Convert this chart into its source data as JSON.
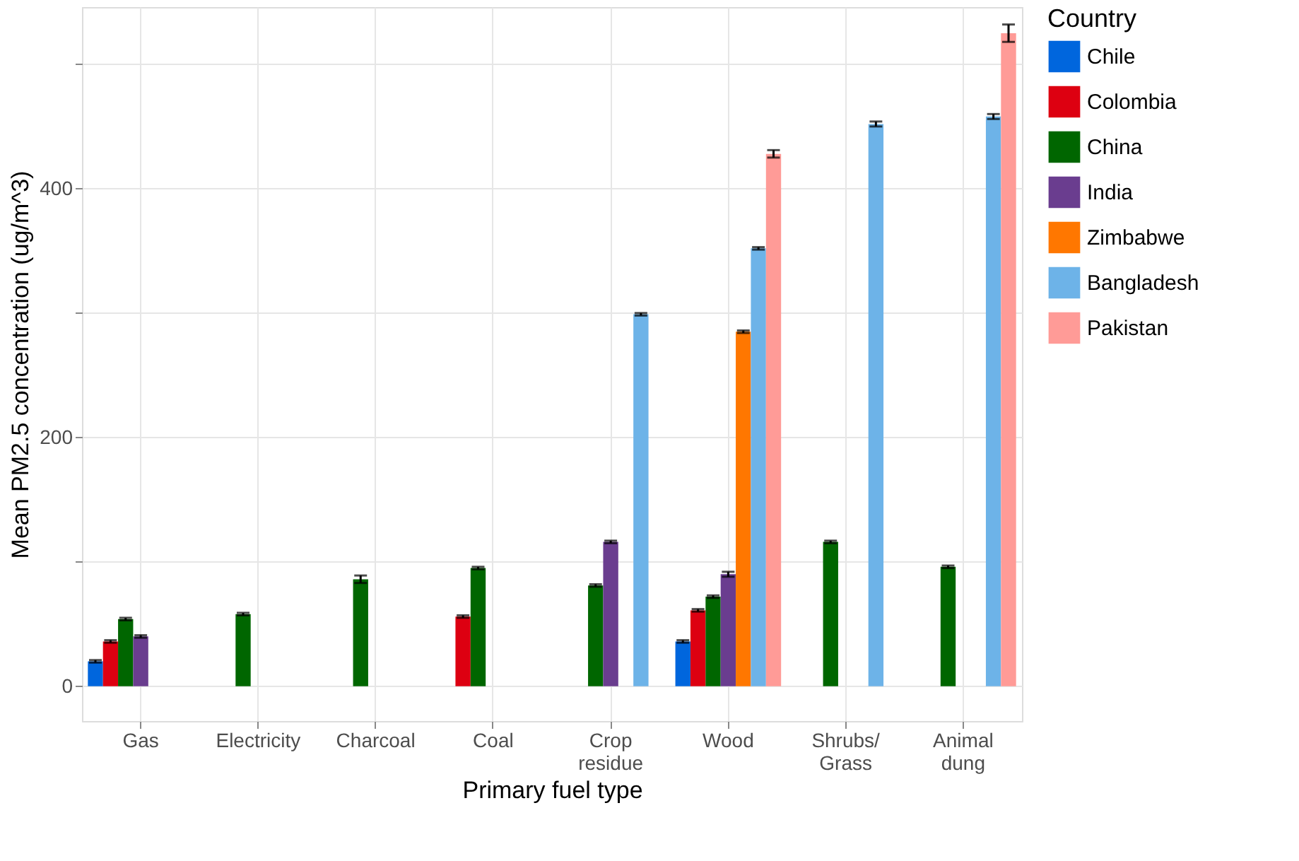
{
  "chart_data": {
    "type": "bar",
    "xlabel": "Primary fuel type",
    "ylabel": "Mean PM2.5 concentration (ug/m^3)",
    "legend_title": "Country",
    "categories": [
      "Gas",
      "Electricity",
      "Charcoal",
      "Coal",
      "Crop\nresidue",
      "Wood",
      "Shrubs/\nGrass",
      "Animal\ndung"
    ],
    "series": [
      {
        "name": "Chile",
        "color": "#0066dd",
        "values": [
          20,
          null,
          null,
          null,
          null,
          36,
          null,
          null
        ],
        "errors": [
          1,
          null,
          null,
          null,
          null,
          1,
          null,
          null
        ]
      },
      {
        "name": "Colombia",
        "color": "#dd0011",
        "values": [
          36,
          null,
          null,
          56,
          null,
          61,
          null,
          null
        ],
        "errors": [
          1,
          null,
          null,
          1,
          null,
          1,
          null,
          null
        ]
      },
      {
        "name": "China",
        "color": "#006600",
        "values": [
          54,
          58,
          86,
          95,
          81,
          72,
          116,
          96
        ],
        "errors": [
          1,
          1,
          3,
          1,
          1,
          1,
          1,
          1
        ]
      },
      {
        "name": "India",
        "color": "#6a3d8f",
        "values": [
          40,
          null,
          null,
          null,
          116,
          90,
          null,
          null
        ],
        "errors": [
          1,
          null,
          null,
          null,
          1,
          2,
          null,
          null
        ]
      },
      {
        "name": "Zimbabwe",
        "color": "#ff7700",
        "values": [
          null,
          null,
          null,
          null,
          null,
          285,
          null,
          null
        ],
        "errors": [
          null,
          null,
          null,
          null,
          null,
          1,
          null,
          null
        ]
      },
      {
        "name": "Bangladesh",
        "color": "#6db3e8",
        "values": [
          null,
          null,
          null,
          null,
          299,
          352,
          452,
          458
        ],
        "errors": [
          null,
          null,
          null,
          null,
          1,
          1,
          2,
          2
        ]
      },
      {
        "name": "Pakistan",
        "color": "#ff9b97",
        "values": [
          null,
          null,
          null,
          null,
          null,
          428,
          null,
          525
        ],
        "errors": [
          null,
          null,
          null,
          null,
          null,
          3,
          null,
          7
        ]
      }
    ],
    "ylim": [
      -28,
      546
    ],
    "yticks": [
      0,
      {
        "value": 100,
        "label": null
      },
      200,
      {
        "value": 300,
        "label": null
      },
      400,
      {
        "value": 500,
        "label": null
      }
    ],
    "grid": true,
    "legend": "right"
  }
}
